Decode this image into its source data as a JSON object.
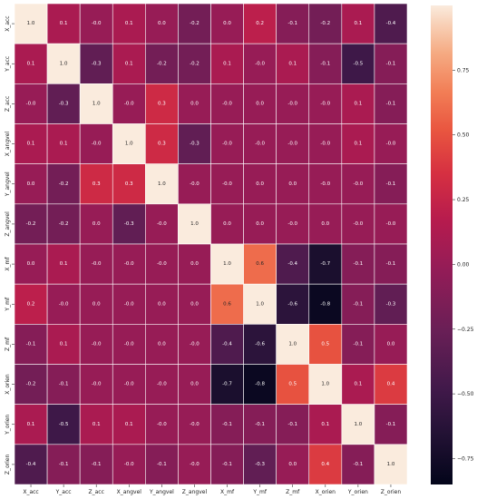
{
  "chart_data": {
    "type": "heatmap",
    "labels": [
      "X_acc",
      "Y_acc",
      "Z_acc",
      "X_angvel",
      "Y_angvel",
      "Z_angvel",
      "X_mf",
      "Y_mf",
      "Z_mf",
      "X_orien",
      "Y_orien",
      "Z_orien"
    ],
    "matrix": [
      [
        1.0,
        0.1,
        -0.0,
        0.1,
        0.0,
        -0.2,
        0.0,
        0.2,
        -0.1,
        -0.2,
        0.1,
        -0.4
      ],
      [
        0.1,
        1.0,
        -0.3,
        0.1,
        -0.2,
        -0.2,
        0.1,
        -0.0,
        0.1,
        -0.1,
        -0.5,
        -0.1
      ],
      [
        -0.0,
        -0.3,
        1.0,
        -0.0,
        0.3,
        0.0,
        -0.0,
        0.0,
        -0.0,
        -0.0,
        0.1,
        -0.1
      ],
      [
        0.1,
        0.1,
        -0.0,
        1.0,
        0.3,
        -0.3,
        -0.0,
        -0.0,
        -0.0,
        -0.0,
        0.1,
        -0.0
      ],
      [
        0.0,
        -0.2,
        0.3,
        0.3,
        1.0,
        -0.0,
        -0.0,
        0.0,
        0.0,
        -0.0,
        -0.0,
        -0.1
      ],
      [
        -0.2,
        -0.2,
        0.0,
        -0.3,
        -0.0,
        1.0,
        0.0,
        0.0,
        -0.0,
        0.0,
        -0.0,
        -0.0
      ],
      [
        0.0,
        0.1,
        -0.0,
        -0.0,
        -0.0,
        0.0,
        1.0,
        0.6,
        -0.4,
        -0.7,
        -0.1,
        -0.1
      ],
      [
        0.2,
        -0.0,
        0.0,
        -0.0,
        0.0,
        0.0,
        0.6,
        1.0,
        -0.6,
        -0.8,
        -0.1,
        -0.3
      ],
      [
        -0.1,
        0.1,
        -0.0,
        -0.0,
        0.0,
        -0.0,
        -0.4,
        -0.6,
        1.0,
        0.5,
        -0.1,
        0.0
      ],
      [
        -0.2,
        -0.1,
        -0.0,
        -0.0,
        -0.0,
        0.0,
        -0.7,
        -0.8,
        0.5,
        1.0,
        0.1,
        0.4
      ],
      [
        0.1,
        -0.5,
        0.1,
        0.1,
        -0.0,
        -0.0,
        -0.1,
        -0.1,
        -0.1,
        0.1,
        1.0,
        -0.1
      ],
      [
        -0.4,
        -0.1,
        -0.1,
        -0.0,
        -0.1,
        -0.0,
        -0.1,
        -0.3,
        0.0,
        0.4,
        -0.1,
        1.0
      ]
    ],
    "colorbar": {
      "min": -0.85,
      "max": 1.0,
      "ticks": [
        -0.75,
        -0.5,
        -0.25,
        0.0,
        0.25,
        0.5,
        0.75
      ],
      "tick_labels": [
        "−0.75",
        "−0.50",
        "−0.25",
        "0.00",
        "0.25",
        "0.50",
        "0.75"
      ]
    },
    "colormap": "rocket",
    "gridlines": true,
    "title": "",
    "xlabel": "",
    "ylabel": ""
  }
}
